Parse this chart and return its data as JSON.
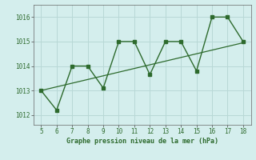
{
  "x": [
    5,
    6,
    7,
    8,
    9,
    10,
    11,
    12,
    13,
    14,
    15,
    16,
    17,
    18
  ],
  "y": [
    1013.0,
    1012.2,
    1014.0,
    1014.0,
    1013.1,
    1015.0,
    1015.0,
    1013.65,
    1015.0,
    1015.0,
    1013.8,
    1016.0,
    1016.0,
    1015.0
  ],
  "trend_x": [
    5,
    18
  ],
  "trend_y": [
    1013.0,
    1014.95
  ],
  "line_color": "#2d6a2d",
  "bg_color": "#d4eeed",
  "grid_color": "#b8d8d6",
  "xlabel": "Graphe pression niveau de la mer (hPa)",
  "ylim": [
    1011.6,
    1016.5
  ],
  "xlim": [
    4.5,
    18.5
  ],
  "yticks": [
    1012,
    1013,
    1014,
    1015,
    1016
  ],
  "xticks": [
    5,
    6,
    7,
    8,
    9,
    10,
    11,
    12,
    13,
    14,
    15,
    16,
    17,
    18
  ],
  "tick_fontsize": 5.5,
  "xlabel_fontsize": 6.0
}
